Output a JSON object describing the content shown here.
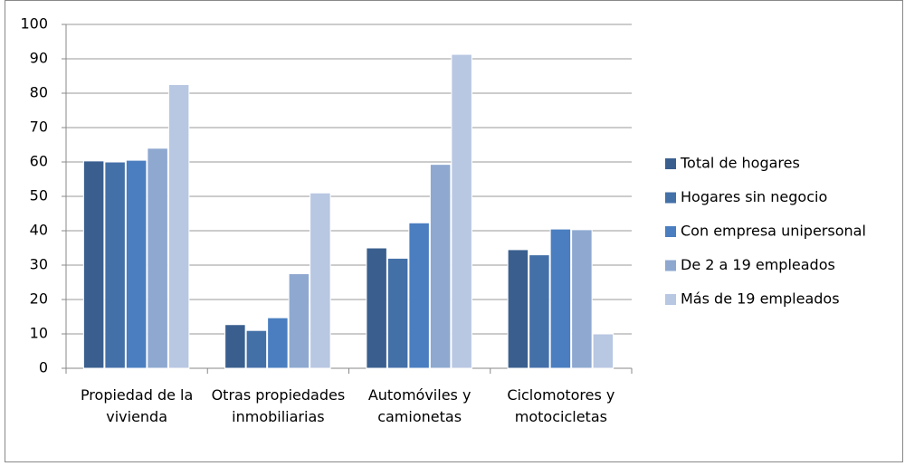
{
  "chart_data": {
    "type": "bar",
    "categories": [
      "Propiedad de la vivienda",
      "Otras propiedades inmobiliarias",
      "Automóviles y camionetas",
      "Ciclomotores y motocicletas"
    ],
    "series": [
      {
        "name": "Total de hogares",
        "color": "#3a5f8f",
        "values": [
          60.3,
          12.7,
          35,
          34.5
        ]
      },
      {
        "name": "Hogares sin negocio",
        "color": "#4470a8",
        "values": [
          60,
          11,
          32,
          33
        ]
      },
      {
        "name": "Con empresa unipersonal",
        "color": "#4a7ec0",
        "values": [
          60.5,
          14.7,
          42.3,
          40.5
        ]
      },
      {
        "name": "De 2 a 19 empleados",
        "color": "#8ea8d0",
        "values": [
          64,
          27.5,
          59.3,
          40.3
        ]
      },
      {
        "name": "Más de 19 empleados",
        "color": "#b8c7e2",
        "values": [
          82.5,
          51,
          91.3,
          10
        ]
      }
    ],
    "ylim": [
      0,
      100
    ],
    "yticks": [
      0,
      10,
      20,
      30,
      40,
      50,
      60,
      70,
      80,
      90,
      100
    ],
    "grid": true,
    "legend": "right"
  }
}
